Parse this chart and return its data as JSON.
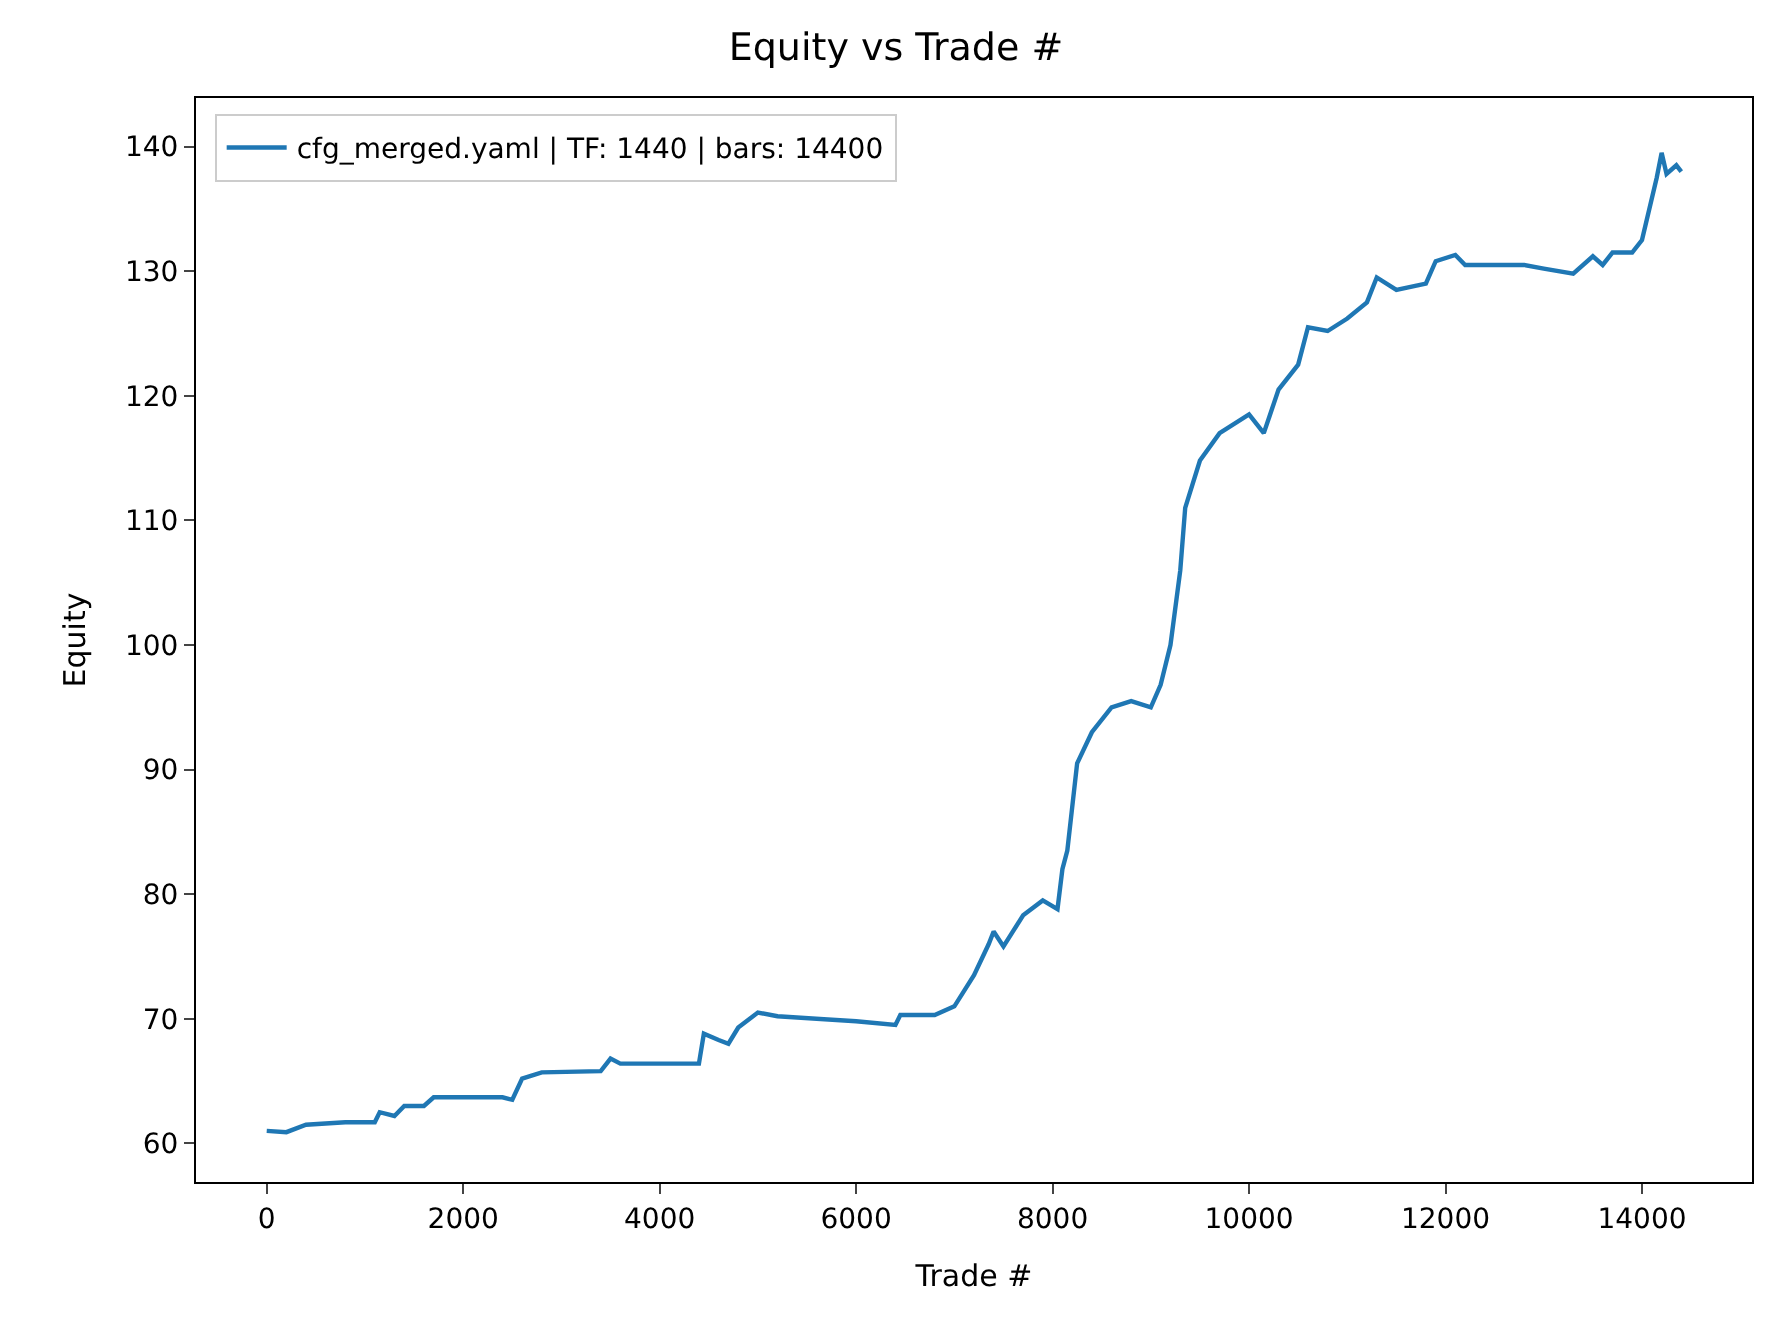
{
  "chart_data": {
    "type": "line",
    "title": "Equity vs Trade #",
    "xlabel": "Trade #",
    "ylabel": "Equity",
    "x": [
      0,
      200,
      400,
      800,
      1100,
      1150,
      1300,
      1400,
      1600,
      1700,
      2400,
      2500,
      2600,
      2800,
      3400,
      3500,
      3600,
      4400,
      4450,
      4600,
      4700,
      4800,
      5000,
      5200,
      6000,
      6400,
      6450,
      6800,
      7000,
      7200,
      7350,
      7400,
      7500,
      7700,
      7900,
      8050,
      8100,
      8150,
      8250,
      8400,
      8600,
      8800,
      9000,
      9100,
      9200,
      9300,
      9350,
      9500,
      9700,
      10000,
      10150,
      10300,
      10500,
      10600,
      10800,
      11000,
      11200,
      11300,
      11500,
      11800,
      11900,
      12100,
      12200,
      12800,
      13000,
      13300,
      13500,
      13600,
      13700,
      13900,
      14000,
      14150,
      14200,
      14250,
      14350,
      14400
    ],
    "series": [
      {
        "name": "cfg_merged.yaml | TF: 1440 | bars: 14400",
        "color": "#1f77b4",
        "values": [
          61.0,
          60.9,
          61.5,
          61.7,
          61.7,
          62.5,
          62.2,
          63.0,
          63.0,
          63.7,
          63.7,
          63.5,
          65.2,
          65.7,
          65.8,
          66.8,
          66.4,
          66.4,
          68.8,
          68.3,
          68.0,
          69.3,
          70.5,
          70.2,
          69.8,
          69.5,
          70.3,
          70.3,
          71.0,
          73.5,
          76.0,
          77.0,
          75.8,
          78.3,
          79.5,
          78.8,
          82.0,
          83.5,
          90.5,
          93.0,
          95.0,
          95.5,
          95.0,
          96.8,
          100.0,
          106.0,
          111.0,
          114.8,
          117.0,
          118.5,
          117.0,
          120.5,
          122.5,
          125.5,
          125.2,
          126.2,
          127.5,
          129.5,
          128.5,
          129.0,
          130.8,
          131.3,
          130.5,
          130.5,
          130.2,
          129.8,
          131.2,
          130.5,
          131.5,
          131.5,
          132.5,
          137.5,
          139.5,
          137.8,
          138.5,
          138.0
        ]
      }
    ],
    "xlim": [
      -720,
      15120
    ],
    "xticks": [
      0,
      2000,
      4000,
      6000,
      8000,
      10000,
      12000,
      14000
    ],
    "ylim": [
      56.9,
      143.9
    ],
    "yticks": [
      60,
      70,
      80,
      90,
      100,
      110,
      120,
      130,
      140
    ],
    "legend": "top left",
    "line_style": "solid"
  }
}
